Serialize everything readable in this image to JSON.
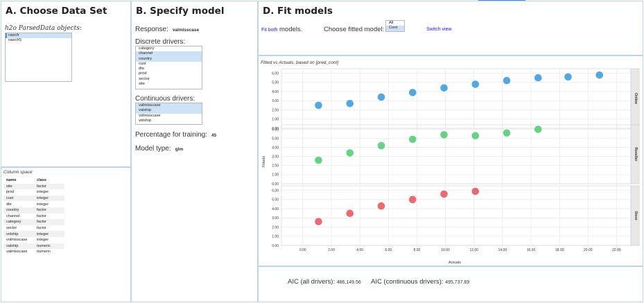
{
  "panelA": {
    "title": "A. Choose Data Set",
    "objects_label": "h2o ParsedData objects:",
    "objects": [
      {
        "name": "rawcfr",
        "selected": true
      },
      {
        "name": "rawcfr5",
        "selected": false
      }
    ],
    "column_space": {
      "title": "Column space",
      "headers": [
        "name",
        "class"
      ],
      "rows": [
        [
          "site",
          "factor"
        ],
        [
          "prod",
          "integer"
        ],
        [
          "cust",
          "integer"
        ],
        [
          "dte",
          "integer"
        ],
        [
          "country",
          "factor"
        ],
        [
          "channel",
          "factor"
        ],
        [
          "category",
          "factor"
        ],
        [
          "sector",
          "factor"
        ],
        [
          "volship",
          "integer"
        ],
        [
          "volmisscase",
          "integer"
        ],
        [
          "valship",
          "numeric"
        ],
        [
          "valmisscase",
          "numeric"
        ]
      ]
    }
  },
  "panelB": {
    "title": "B. Specify model",
    "response_label": "Response:",
    "response_value": "valmisscase",
    "discrete_label": "Discrete drivers:",
    "discrete": [
      {
        "name": "category",
        "selected": false
      },
      {
        "name": "channel",
        "selected": true
      },
      {
        "name": "country",
        "selected": true
      },
      {
        "name": "cust",
        "selected": false
      },
      {
        "name": "dte",
        "selected": false
      },
      {
        "name": "prod",
        "selected": false
      },
      {
        "name": "sector",
        "selected": false
      },
      {
        "name": "site",
        "selected": false
      }
    ],
    "continuous_label": "Continuous drivers:",
    "continuous": [
      {
        "name": "valmisscase",
        "selected": true
      },
      {
        "name": "valship",
        "selected": true
      },
      {
        "name": "volmisscase",
        "selected": false
      },
      {
        "name": "volship",
        "selected": false
      }
    ],
    "pct_label": "Percentage for training:",
    "pct_value": "45",
    "model_type_label": "Model type:",
    "model_type_value": "glm"
  },
  "panelD": {
    "title": "D. Fit models",
    "fit_both_link": "Fit both",
    "fit_both_suffix": "models.",
    "choose_label": "Choose fitted model:",
    "fitted_options": [
      {
        "name": "All",
        "selected": false
      },
      {
        "name": "Cont",
        "selected": true
      }
    ],
    "switch_view": "Switch view",
    "aic_all_label": "AIC (all drivers):",
    "aic_all_value": "486,149.56",
    "aic_cont_label": "AIC (continuous drivers):",
    "aic_cont_value": "495,737.89"
  },
  "chart_data": {
    "type": "scatter",
    "title": "Fitted vs Actuals, based on [pred_cont]",
    "xlabel": "Actuals",
    "ylabel": "Fitteds",
    "xlim": [
      -1.5,
      23.0
    ],
    "x_ticks": [
      "0.00",
      "2.00",
      "4.00",
      "6.00",
      "8.00",
      "10.00",
      "12.00",
      "14.00",
      "16.00",
      "18.00",
      "20.00",
      "22.00"
    ],
    "grid": true,
    "facets": [
      {
        "name": "Online",
        "color": "#4ca3e0",
        "ylim": [
          0,
          6.5
        ],
        "y_ticks": [
          "0.00",
          "1.00",
          "2.00",
          "3.00",
          "4.00",
          "5.00",
          "6.00"
        ],
        "points": [
          [
            1.1,
            2.5
          ],
          [
            3.3,
            2.7
          ],
          [
            5.5,
            3.4
          ],
          [
            7.7,
            3.9
          ],
          [
            9.9,
            4.4
          ],
          [
            12.1,
            4.8
          ],
          [
            14.3,
            5.2
          ],
          [
            16.5,
            5.5
          ],
          [
            18.6,
            5.6
          ],
          [
            20.8,
            5.8
          ]
        ]
      },
      {
        "name": "Reseller",
        "color": "#5fcf80",
        "ylim": [
          0,
          6.5
        ],
        "y_ticks": [
          "0.00",
          "1.00",
          "2.00",
          "3.00",
          "4.00",
          "5.00",
          "6.00"
        ],
        "points": [
          [
            1.1,
            2.6
          ],
          [
            3.3,
            3.4
          ],
          [
            5.5,
            4.2
          ],
          [
            7.7,
            4.9
          ],
          [
            9.9,
            5.4
          ],
          [
            12.1,
            5.3
          ],
          [
            14.3,
            5.6
          ],
          [
            16.5,
            6.0
          ]
        ]
      },
      {
        "name": "Store",
        "color": "#e8646a",
        "ylim": [
          0,
          6.5
        ],
        "y_ticks": [
          "0.00",
          "1.00",
          "2.00",
          "3.00",
          "4.00",
          "5.00",
          "6.00"
        ],
        "points": [
          [
            1.1,
            2.6
          ],
          [
            3.3,
            3.5
          ],
          [
            5.5,
            4.3
          ],
          [
            7.7,
            5.0
          ],
          [
            9.9,
            5.6
          ],
          [
            12.1,
            5.9
          ]
        ]
      }
    ]
  }
}
